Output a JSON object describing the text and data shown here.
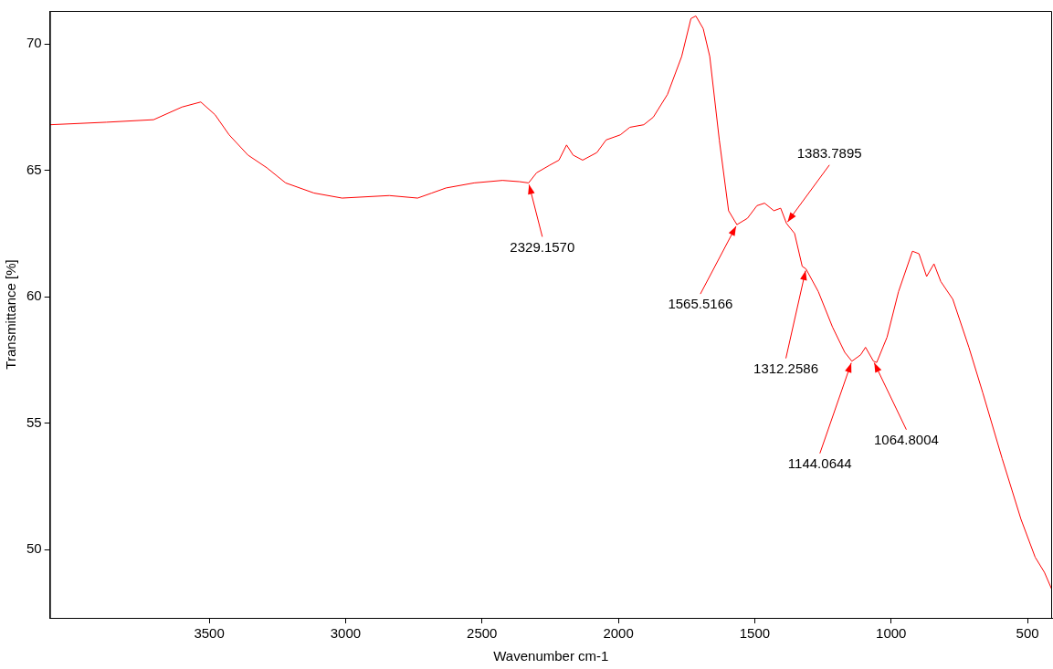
{
  "chart_data": {
    "type": "line",
    "xlabel": "Wavenumber cm-1",
    "ylabel": "Transmittance [%]",
    "color": "#ff0000",
    "marker": "none",
    "line_style": "solid",
    "grid": false,
    "legend": false,
    "x": [
      4084,
      3877,
      3704,
      3600,
      3531,
      3479,
      3427,
      3358,
      3289,
      3220,
      3116,
      3013,
      2840,
      2736,
      2684,
      2632,
      2529,
      2425,
      2363,
      2329.157,
      2300,
      2252,
      2218,
      2190,
      2166,
      2131,
      2079,
      2045,
      1993,
      1958,
      1907,
      1872,
      1820,
      1768,
      1734,
      1716,
      1689,
      1665,
      1630,
      1596,
      1565.5166,
      1527,
      1492,
      1464,
      1430,
      1405,
      1383.7895,
      1354,
      1326,
      1312.2586,
      1267,
      1215,
      1170,
      1144.0644,
      1112,
      1094,
      1064.8004,
      1053,
      1015,
      973,
      922,
      898,
      870,
      843,
      818,
      774,
      715,
      664,
      593,
      524,
      472,
      438,
      410
    ],
    "values": [
      66.8,
      66.9,
      67.0,
      67.5,
      67.7,
      67.2,
      66.4,
      65.6,
      65.1,
      64.5,
      64.1,
      63.9,
      64.0,
      63.9,
      64.1,
      64.3,
      64.5,
      64.6,
      64.55,
      64.5,
      64.9,
      65.2,
      65.4,
      66.0,
      65.6,
      65.4,
      65.7,
      66.2,
      66.4,
      66.7,
      66.8,
      67.1,
      68.0,
      69.5,
      71.0,
      71.1,
      70.6,
      69.5,
      66.2,
      63.4,
      62.85,
      63.1,
      63.6,
      63.7,
      63.4,
      63.5,
      62.9,
      62.5,
      61.2,
      61.1,
      60.2,
      58.8,
      57.8,
      57.45,
      57.7,
      58.0,
      57.45,
      57.4,
      58.4,
      60.2,
      61.8,
      61.7,
      60.8,
      61.3,
      60.6,
      59.9,
      58.0,
      56.2,
      53.6,
      51.2,
      49.7,
      49.1,
      48.4
    ],
    "xlim": [
      4084,
      410
    ],
    "ylim": [
      47.3,
      71.3
    ],
    "xticks": [
      3500,
      3000,
      2500,
      2000,
      1500,
      1000,
      500
    ],
    "yticks": [
      50,
      55,
      60,
      65,
      70
    ],
    "annotations": [
      {
        "text": "2329.1570",
        "x": 2329.157,
        "y": 64.5
      },
      {
        "text": "1565.5166",
        "x": 1565.5166,
        "y": 62.85
      },
      {
        "text": "1383.7895",
        "x": 1383.7895,
        "y": 62.9
      },
      {
        "text": "1312.2586",
        "x": 1312.2586,
        "y": 61.1
      },
      {
        "text": "1144.0644",
        "x": 1144.0644,
        "y": 57.45
      },
      {
        "text": "1064.8004",
        "x": 1064.8004,
        "y": 57.45
      }
    ]
  }
}
